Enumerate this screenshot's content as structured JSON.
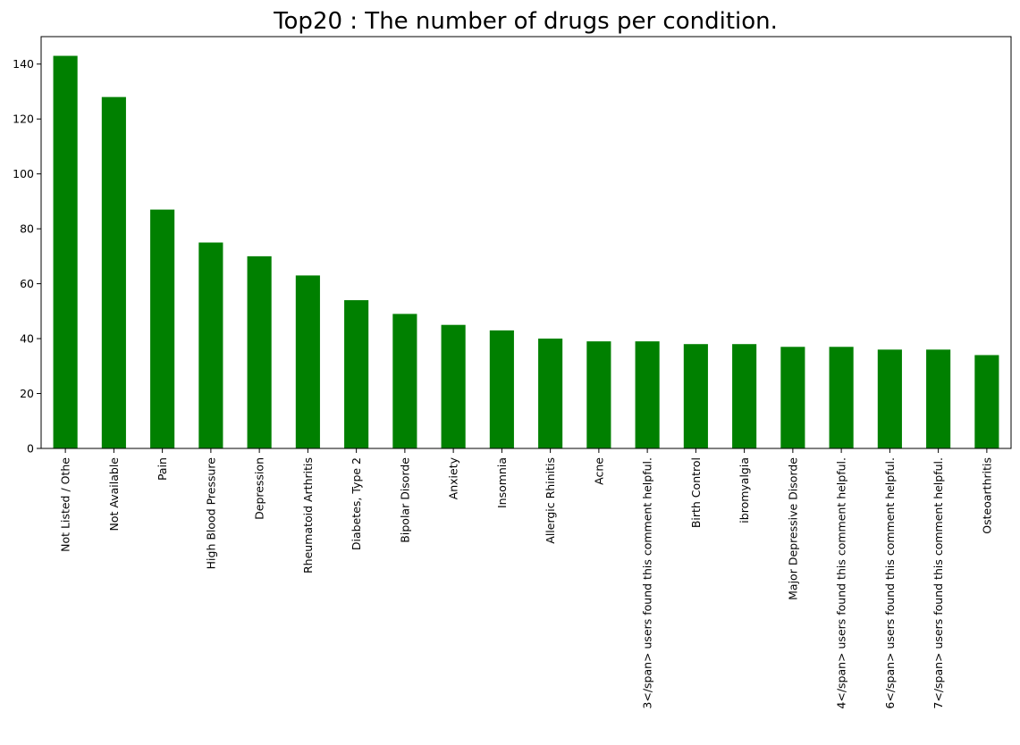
{
  "chart_data": {
    "type": "bar",
    "title": "Top20 : The number of drugs per condition.",
    "xlabel": "",
    "ylabel": "",
    "categories": [
      "Not Listed / Othe",
      "Not Available",
      "Pain",
      "High Blood Pressure",
      "Depression",
      "Rheumatoid Arthritis",
      "Diabetes, Type 2",
      "Bipolar Disorde",
      "Anxiety",
      "Insomnia",
      "Allergic Rhinitis",
      "Acne",
      "3</span> users found this comment helpful.",
      "Birth Control",
      "ibromyalgia",
      "Major Depressive Disorde",
      "4</span> users found this comment helpful.",
      "6</span> users found this comment helpful.",
      "7</span> users found this comment helpful.",
      "Osteoarthritis"
    ],
    "values": [
      143,
      128,
      87,
      75,
      70,
      63,
      54,
      49,
      45,
      43,
      40,
      39,
      39,
      38,
      38,
      37,
      37,
      36,
      36,
      34
    ],
    "ylim": [
      0,
      150
    ],
    "yticks": [
      0,
      20,
      40,
      60,
      80,
      100,
      120,
      140
    ],
    "bar_color": "#008000",
    "grid": false,
    "legend": "none"
  }
}
